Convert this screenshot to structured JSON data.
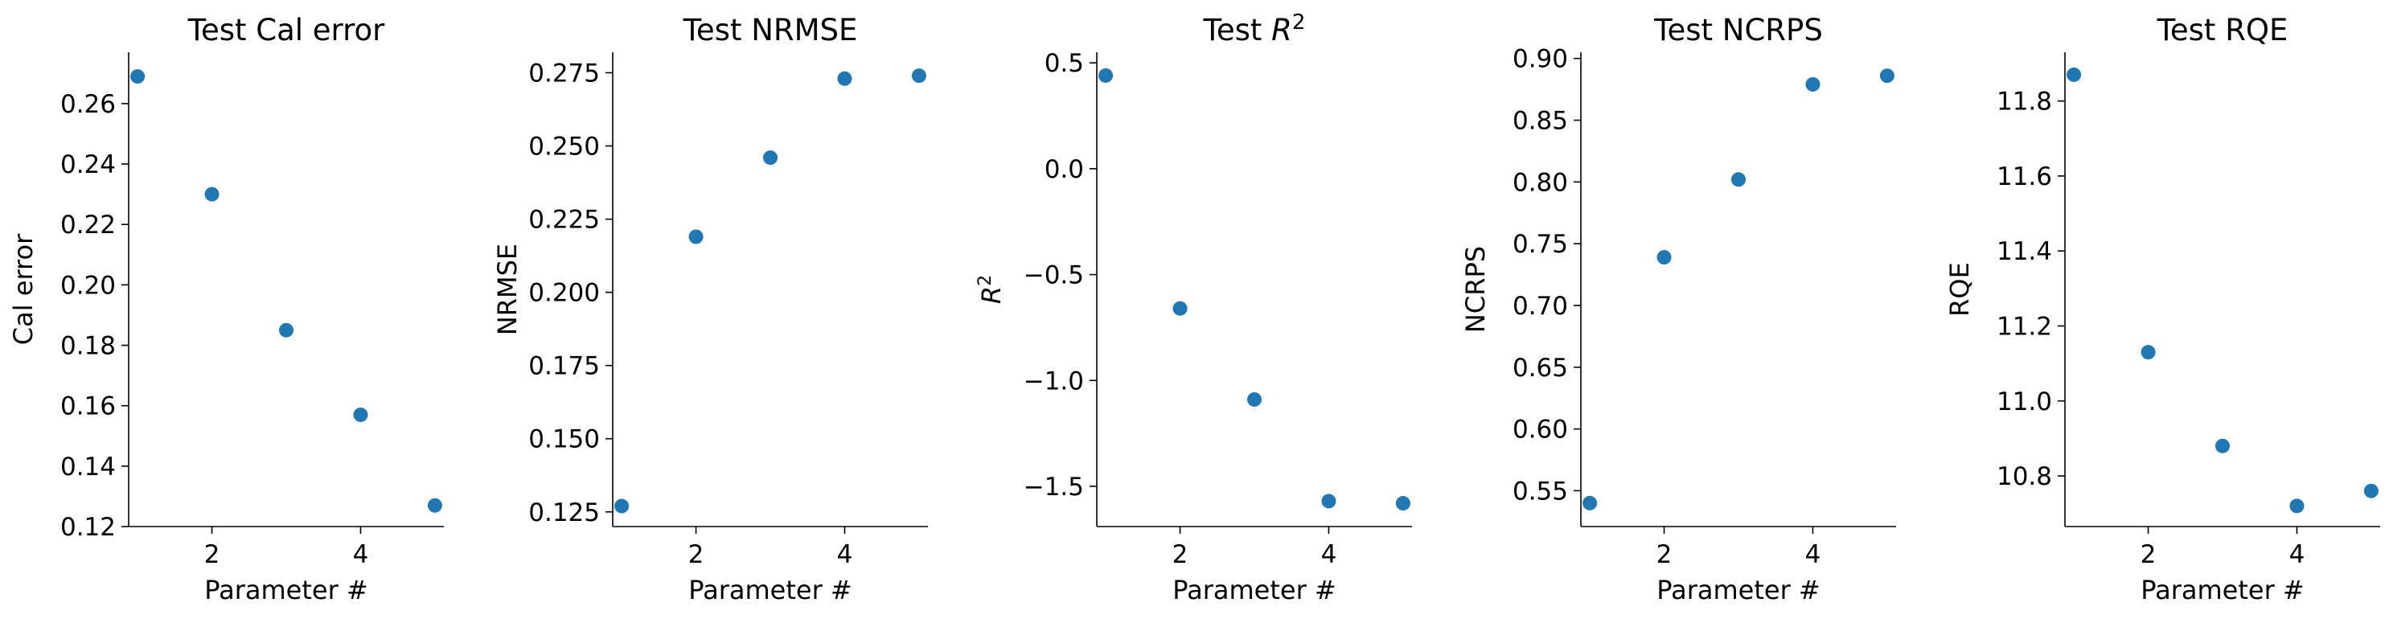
{
  "figure": {
    "marker_color": "#1f77b4"
  },
  "chart_data": [
    {
      "type": "scatter",
      "title": "Test Cal error",
      "xlabel": "Parameter #",
      "ylabel": "Cal error",
      "x": [
        1,
        2,
        3,
        4,
        5
      ],
      "y": [
        0.269,
        0.23,
        0.185,
        0.157,
        0.127
      ],
      "xlim": [
        0.88,
        5.12
      ],
      "ylim": [
        0.12,
        0.277
      ],
      "xticks": [
        2,
        4
      ],
      "xtick_labels": [
        "2",
        "4"
      ],
      "yticks": [
        0.12,
        0.14,
        0.16,
        0.18,
        0.2,
        0.22,
        0.24,
        0.26
      ],
      "ytick_labels": [
        "0.12",
        "0.14",
        "0.16",
        "0.18",
        "0.20",
        "0.22",
        "0.24",
        "0.26"
      ],
      "grid": false,
      "legend": "none"
    },
    {
      "type": "scatter",
      "title": "Test NRMSE",
      "xlabel": "Parameter #",
      "ylabel": "NRMSE",
      "x": [
        1,
        2,
        3,
        4,
        5
      ],
      "y": [
        0.127,
        0.219,
        0.246,
        0.273,
        0.274
      ],
      "xlim": [
        0.88,
        5.12
      ],
      "ylim": [
        0.12,
        0.282
      ],
      "xticks": [
        2,
        4
      ],
      "xtick_labels": [
        "2",
        "4"
      ],
      "yticks": [
        0.125,
        0.15,
        0.175,
        0.2,
        0.225,
        0.25,
        0.275
      ],
      "ytick_labels": [
        "0.125",
        "0.150",
        "0.175",
        "0.200",
        "0.225",
        "0.250",
        "0.275"
      ],
      "grid": false,
      "legend": "none"
    },
    {
      "type": "scatter",
      "title": "Test R2",
      "title_parts": {
        "prefix": "Test ",
        "var": "R",
        "sup": "2"
      },
      "xlabel": "Parameter #",
      "ylabel": "R2",
      "ylabel_parts": {
        "var": "R",
        "sup": "2"
      },
      "x": [
        1,
        2,
        3,
        4,
        5
      ],
      "y": [
        0.44,
        -0.66,
        -1.09,
        -1.57,
        -1.58
      ],
      "xlim": [
        0.88,
        5.12
      ],
      "ylim": [
        -1.69,
        0.55
      ],
      "xticks": [
        2,
        4
      ],
      "xtick_labels": [
        "2",
        "4"
      ],
      "yticks": [
        -1.5,
        -1.0,
        -0.5,
        0.0,
        0.5
      ],
      "ytick_labels": [
        "−1.5",
        "−1.0",
        "−0.5",
        "0.0",
        "0.5"
      ],
      "grid": false,
      "legend": "none"
    },
    {
      "type": "scatter",
      "title": "Test NCRPS",
      "xlabel": "Parameter #",
      "ylabel": "NCRPS",
      "x": [
        1,
        2,
        3,
        4,
        5
      ],
      "y": [
        0.54,
        0.739,
        0.802,
        0.879,
        0.886
      ],
      "xlim": [
        0.88,
        5.12
      ],
      "ylim": [
        0.521,
        0.905
      ],
      "xticks": [
        2,
        4
      ],
      "xtick_labels": [
        "2",
        "4"
      ],
      "yticks": [
        0.55,
        0.6,
        0.65,
        0.7,
        0.75,
        0.8,
        0.85,
        0.9
      ],
      "ytick_labels": [
        "0.55",
        "0.60",
        "0.65",
        "0.70",
        "0.75",
        "0.80",
        "0.85",
        "0.90"
      ],
      "grid": false,
      "legend": "none"
    },
    {
      "type": "scatter",
      "title": "Test RQE",
      "xlabel": "Parameter #",
      "ylabel": "RQE",
      "x": [
        1,
        2,
        3,
        4,
        5
      ],
      "y": [
        11.87,
        11.13,
        10.88,
        10.72,
        10.76
      ],
      "xlim": [
        0.88,
        5.12
      ],
      "ylim": [
        10.665,
        11.93
      ],
      "xticks": [
        2,
        4
      ],
      "xtick_labels": [
        "2",
        "4"
      ],
      "yticks": [
        10.8,
        11.0,
        11.2,
        11.4,
        11.6,
        11.8
      ],
      "ytick_labels": [
        "10.8",
        "11.0",
        "11.2",
        "11.4",
        "11.6",
        "11.8"
      ],
      "grid": false,
      "legend": "none"
    }
  ]
}
